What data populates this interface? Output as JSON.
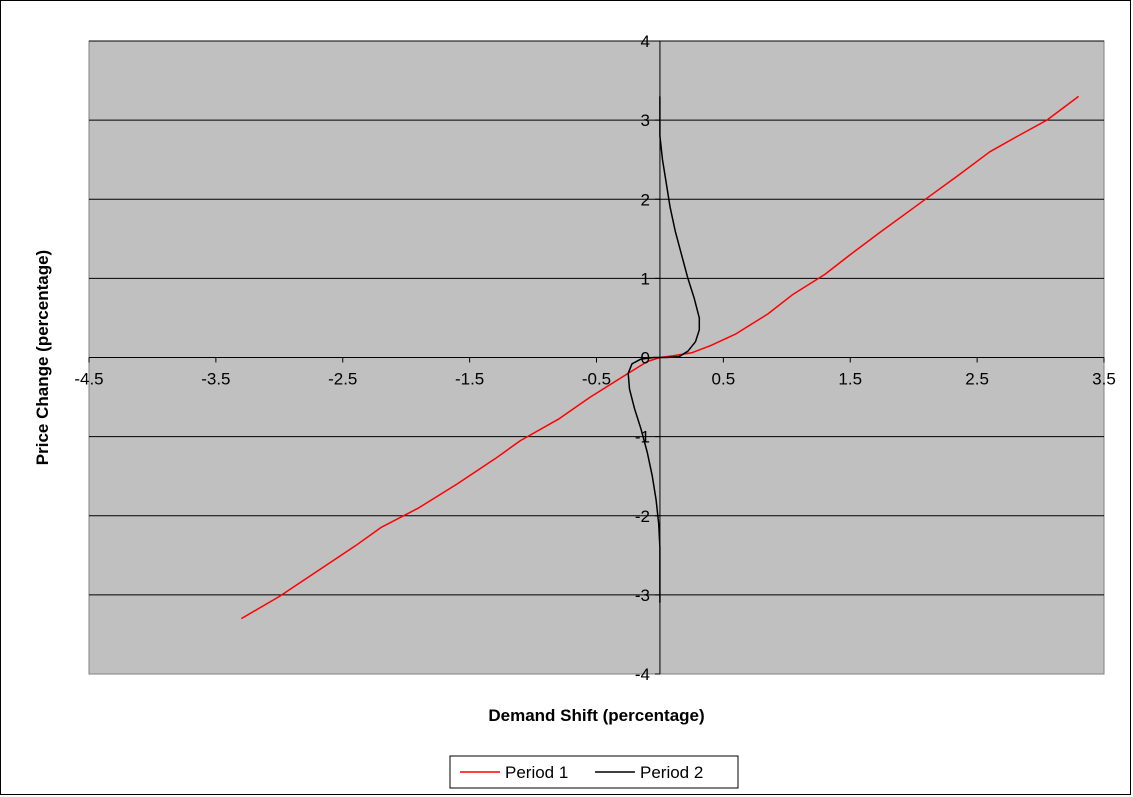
{
  "chart_data": {
    "type": "line",
    "title": "",
    "xlabel": "Demand Shift (percentage)",
    "ylabel": "Price Change (percentage)",
    "xlim": [
      -4.5,
      3.5
    ],
    "ylim": [
      -4,
      4
    ],
    "x_ticks": [
      -4.5,
      -3.5,
      -2.5,
      -1.5,
      -0.5,
      0.5,
      1.5,
      2.5,
      3.5
    ],
    "x_tick_labels": [
      "-4.5",
      "-3.5",
      "-2.5",
      "-1.5",
      "-0.5",
      "0.5",
      "1.5",
      "2.5",
      "3.5"
    ],
    "y_ticks": [
      -4,
      -3,
      -2,
      -1,
      0,
      1,
      2,
      3,
      4
    ],
    "y_tick_labels": [
      "-4",
      "-3",
      "-2",
      "-1",
      "0",
      "1",
      "2",
      "3",
      "4"
    ],
    "grid": "horizontal",
    "plot_background": "#c0c0c0",
    "legend_position": "bottom",
    "series": [
      {
        "name": "Period 1",
        "color": "#ff0000",
        "points": [
          [
            -3.3,
            -3.3
          ],
          [
            -3.0,
            -3.02
          ],
          [
            -2.7,
            -2.7
          ],
          [
            -2.4,
            -2.38
          ],
          [
            -2.2,
            -2.15
          ],
          [
            -1.9,
            -1.9
          ],
          [
            -1.6,
            -1.6
          ],
          [
            -1.3,
            -1.28
          ],
          [
            -1.1,
            -1.05
          ],
          [
            -0.8,
            -0.78
          ],
          [
            -0.55,
            -0.5
          ],
          [
            -0.3,
            -0.25
          ],
          [
            -0.1,
            -0.05
          ],
          [
            0.0,
            0.0
          ],
          [
            0.1,
            0.02
          ],
          [
            0.25,
            0.06
          ],
          [
            0.4,
            0.15
          ],
          [
            0.6,
            0.3
          ],
          [
            0.85,
            0.55
          ],
          [
            1.05,
            0.8
          ],
          [
            1.3,
            1.05
          ],
          [
            1.5,
            1.3
          ],
          [
            1.75,
            1.6
          ],
          [
            2.05,
            1.95
          ],
          [
            2.35,
            2.3
          ],
          [
            2.6,
            2.6
          ],
          [
            2.8,
            2.78
          ],
          [
            3.05,
            3.0
          ],
          [
            3.3,
            3.3
          ]
        ]
      },
      {
        "name": "Period 2",
        "color": "#000000",
        "points": [
          [
            0.0,
            3.3
          ],
          [
            0.0,
            3.0
          ],
          [
            0.0,
            2.8
          ],
          [
            0.02,
            2.5
          ],
          [
            0.05,
            2.2
          ],
          [
            0.08,
            1.9
          ],
          [
            0.12,
            1.6
          ],
          [
            0.17,
            1.3
          ],
          [
            0.22,
            1.0
          ],
          [
            0.27,
            0.75
          ],
          [
            0.31,
            0.5
          ],
          [
            0.31,
            0.35
          ],
          [
            0.28,
            0.2
          ],
          [
            0.22,
            0.08
          ],
          [
            0.15,
            0.01
          ],
          [
            0.05,
            0.0
          ],
          [
            0.0,
            0.0
          ],
          [
            -0.05,
            0.0
          ],
          [
            -0.15,
            -0.02
          ],
          [
            -0.22,
            -0.08
          ],
          [
            -0.25,
            -0.2
          ],
          [
            -0.24,
            -0.4
          ],
          [
            -0.2,
            -0.65
          ],
          [
            -0.15,
            -0.9
          ],
          [
            -0.1,
            -1.2
          ],
          [
            -0.06,
            -1.5
          ],
          [
            -0.03,
            -1.8
          ],
          [
            -0.01,
            -2.1
          ],
          [
            0.0,
            -2.4
          ],
          [
            0.0,
            -2.7
          ],
          [
            0.0,
            -3.1
          ]
        ]
      }
    ]
  }
}
